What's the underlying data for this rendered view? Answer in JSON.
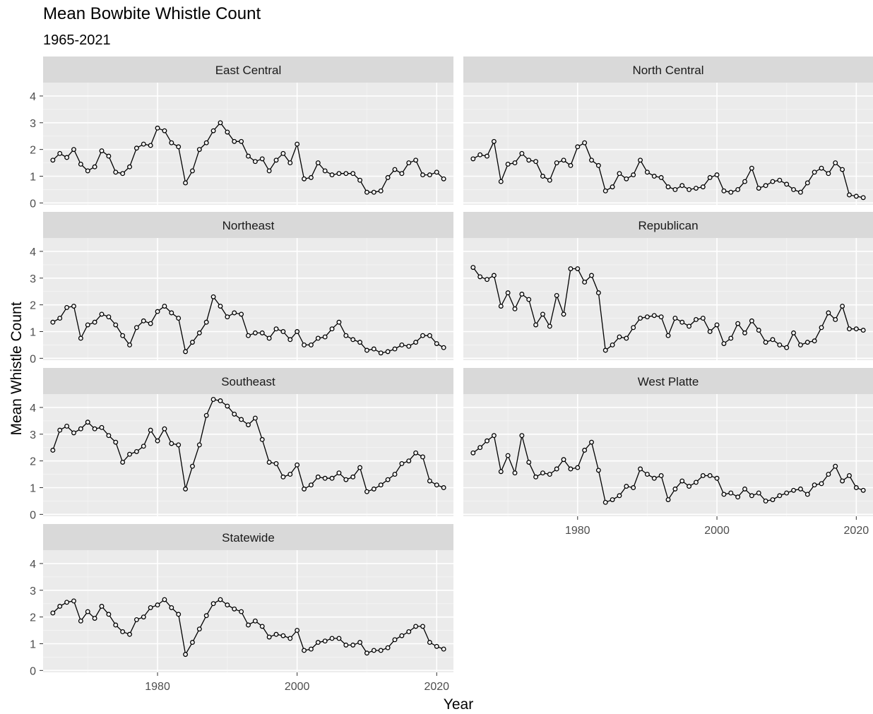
{
  "chart_data": {
    "type": "line",
    "title": "Mean Bowbite Whistle Count",
    "subtitle": "1965-2021",
    "xlabel": "Year",
    "ylabel": "Mean Whistle Count",
    "xlim": [
      1963.6,
      2022.4
    ],
    "ylim": [
      -0.07,
      4.5
    ],
    "x_ticks": [
      1980,
      2000,
      2020
    ],
    "y_ticks": [
      0,
      1,
      2,
      3,
      4
    ],
    "grid": true,
    "x": [
      1965,
      1966,
      1967,
      1968,
      1969,
      1970,
      1971,
      1972,
      1973,
      1974,
      1975,
      1976,
      1977,
      1978,
      1979,
      1980,
      1981,
      1982,
      1983,
      1984,
      1985,
      1986,
      1987,
      1988,
      1989,
      1990,
      1991,
      1992,
      1993,
      1994,
      1995,
      1996,
      1997,
      1998,
      1999,
      2000,
      2001,
      2002,
      2003,
      2004,
      2005,
      2006,
      2007,
      2008,
      2009,
      2010,
      2011,
      2012,
      2013,
      2014,
      2015,
      2016,
      2017,
      2018,
      2019,
      2020,
      2021
    ],
    "panels": [
      {
        "name": "East Central",
        "values": [
          1.6,
          1.85,
          1.7,
          2.0,
          1.45,
          1.2,
          1.35,
          1.95,
          1.75,
          1.15,
          1.1,
          1.35,
          2.05,
          2.2,
          2.15,
          2.8,
          2.7,
          2.25,
          2.1,
          0.75,
          1.2,
          2.0,
          2.25,
          2.7,
          3.0,
          2.65,
          2.3,
          2.3,
          1.75,
          1.55,
          1.65,
          1.2,
          1.6,
          1.85,
          1.5,
          2.2,
          0.9,
          0.95,
          1.5,
          1.2,
          1.05,
          1.1,
          1.1,
          1.1,
          0.85,
          0.4,
          0.4,
          0.45,
          0.95,
          1.25,
          1.1,
          1.5,
          1.6,
          1.05,
          1.05,
          1.15,
          0.9
        ]
      },
      {
        "name": "North Central",
        "values": [
          1.65,
          1.8,
          1.75,
          2.3,
          0.8,
          1.45,
          1.5,
          1.85,
          1.6,
          1.55,
          1.0,
          0.85,
          1.5,
          1.6,
          1.4,
          2.1,
          2.25,
          1.6,
          1.4,
          0.45,
          0.6,
          1.1,
          0.9,
          1.05,
          1.6,
          1.15,
          1.0,
          0.95,
          0.6,
          0.5,
          0.65,
          0.5,
          0.55,
          0.6,
          0.95,
          1.05,
          0.45,
          0.4,
          0.5,
          0.8,
          1.3,
          0.55,
          0.65,
          0.8,
          0.85,
          0.7,
          0.5,
          0.4,
          0.75,
          1.15,
          1.3,
          1.1,
          1.5,
          1.25,
          0.3,
          0.25,
          0.2
        ]
      },
      {
        "name": "Northeast",
        "values": [
          1.35,
          1.5,
          1.9,
          1.95,
          0.75,
          1.25,
          1.35,
          1.65,
          1.55,
          1.25,
          0.85,
          0.5,
          1.15,
          1.4,
          1.3,
          1.75,
          1.95,
          1.7,
          1.5,
          0.25,
          0.6,
          0.95,
          1.35,
          2.3,
          1.95,
          1.55,
          1.7,
          1.65,
          0.85,
          0.95,
          0.95,
          0.75,
          1.1,
          1.0,
          0.7,
          1.0,
          0.5,
          0.5,
          0.75,
          0.8,
          1.1,
          1.35,
          0.85,
          0.7,
          0.6,
          0.3,
          0.35,
          0.2,
          0.25,
          0.35,
          0.5,
          0.45,
          0.6,
          0.85,
          0.85,
          0.55,
          0.4
        ]
      },
      {
        "name": "Republican",
        "values": [
          3.4,
          3.05,
          2.95,
          3.1,
          1.95,
          2.45,
          1.85,
          2.4,
          2.2,
          1.25,
          1.65,
          1.2,
          2.35,
          1.65,
          3.35,
          3.35,
          2.85,
          3.1,
          2.45,
          0.3,
          0.5,
          0.8,
          0.75,
          1.15,
          1.5,
          1.55,
          1.6,
          1.55,
          0.85,
          1.5,
          1.35,
          1.2,
          1.45,
          1.5,
          1.0,
          1.25,
          0.55,
          0.75,
          1.3,
          0.95,
          1.4,
          1.05,
          0.6,
          0.7,
          0.5,
          0.4,
          0.95,
          0.5,
          0.6,
          0.65,
          1.15,
          1.7,
          1.45,
          1.95,
          1.1,
          1.1,
          1.05
        ]
      },
      {
        "name": "Southeast",
        "values": [
          2.4,
          3.15,
          3.3,
          3.05,
          3.2,
          3.45,
          3.2,
          3.25,
          2.95,
          2.7,
          1.95,
          2.25,
          2.35,
          2.55,
          3.15,
          2.75,
          3.2,
          2.65,
          2.6,
          0.95,
          1.8,
          2.6,
          3.7,
          4.3,
          4.25,
          4.05,
          3.75,
          3.55,
          3.35,
          3.6,
          2.8,
          1.95,
          1.9,
          1.4,
          1.5,
          1.85,
          0.95,
          1.1,
          1.4,
          1.35,
          1.35,
          1.55,
          1.3,
          1.4,
          1.75,
          0.85,
          0.95,
          1.1,
          1.3,
          1.5,
          1.9,
          2.0,
          2.3,
          2.15,
          1.25,
          1.1,
          1.0
        ]
      },
      {
        "name": "West Platte",
        "values": [
          2.3,
          2.5,
          2.75,
          2.95,
          1.6,
          2.2,
          1.55,
          2.95,
          1.95,
          1.4,
          1.55,
          1.5,
          1.7,
          2.05,
          1.7,
          1.75,
          2.4,
          2.7,
          1.65,
          0.45,
          0.55,
          0.7,
          1.05,
          1.0,
          1.7,
          1.5,
          1.35,
          1.45,
          0.55,
          0.95,
          1.25,
          1.05,
          1.2,
          1.45,
          1.45,
          1.35,
          0.75,
          0.8,
          0.65,
          0.95,
          0.7,
          0.8,
          0.5,
          0.55,
          0.7,
          0.8,
          0.9,
          0.95,
          0.75,
          1.1,
          1.15,
          1.5,
          1.8,
          1.25,
          1.45,
          1.0,
          0.9
        ]
      },
      {
        "name": "Statewide",
        "values": [
          2.15,
          2.4,
          2.55,
          2.6,
          1.85,
          2.2,
          1.95,
          2.4,
          2.1,
          1.7,
          1.45,
          1.35,
          1.9,
          2.0,
          2.35,
          2.45,
          2.65,
          2.35,
          2.1,
          0.6,
          1.05,
          1.55,
          2.05,
          2.5,
          2.65,
          2.45,
          2.3,
          2.2,
          1.7,
          1.85,
          1.65,
          1.25,
          1.35,
          1.3,
          1.2,
          1.5,
          0.75,
          0.8,
          1.05,
          1.1,
          1.2,
          1.2,
          0.95,
          0.95,
          1.05,
          0.65,
          0.75,
          0.75,
          0.85,
          1.15,
          1.3,
          1.45,
          1.65,
          1.65,
          1.05,
          0.9,
          0.8
        ]
      }
    ]
  },
  "colors": {
    "panel_background": "#ebebeb",
    "grid_major": "#ffffff",
    "grid_minor": "#f5f5f5",
    "strip_background": "#d9d9d9",
    "line": "#000000",
    "point_stroke": "#000000",
    "point_fill": "#ffffff"
  }
}
